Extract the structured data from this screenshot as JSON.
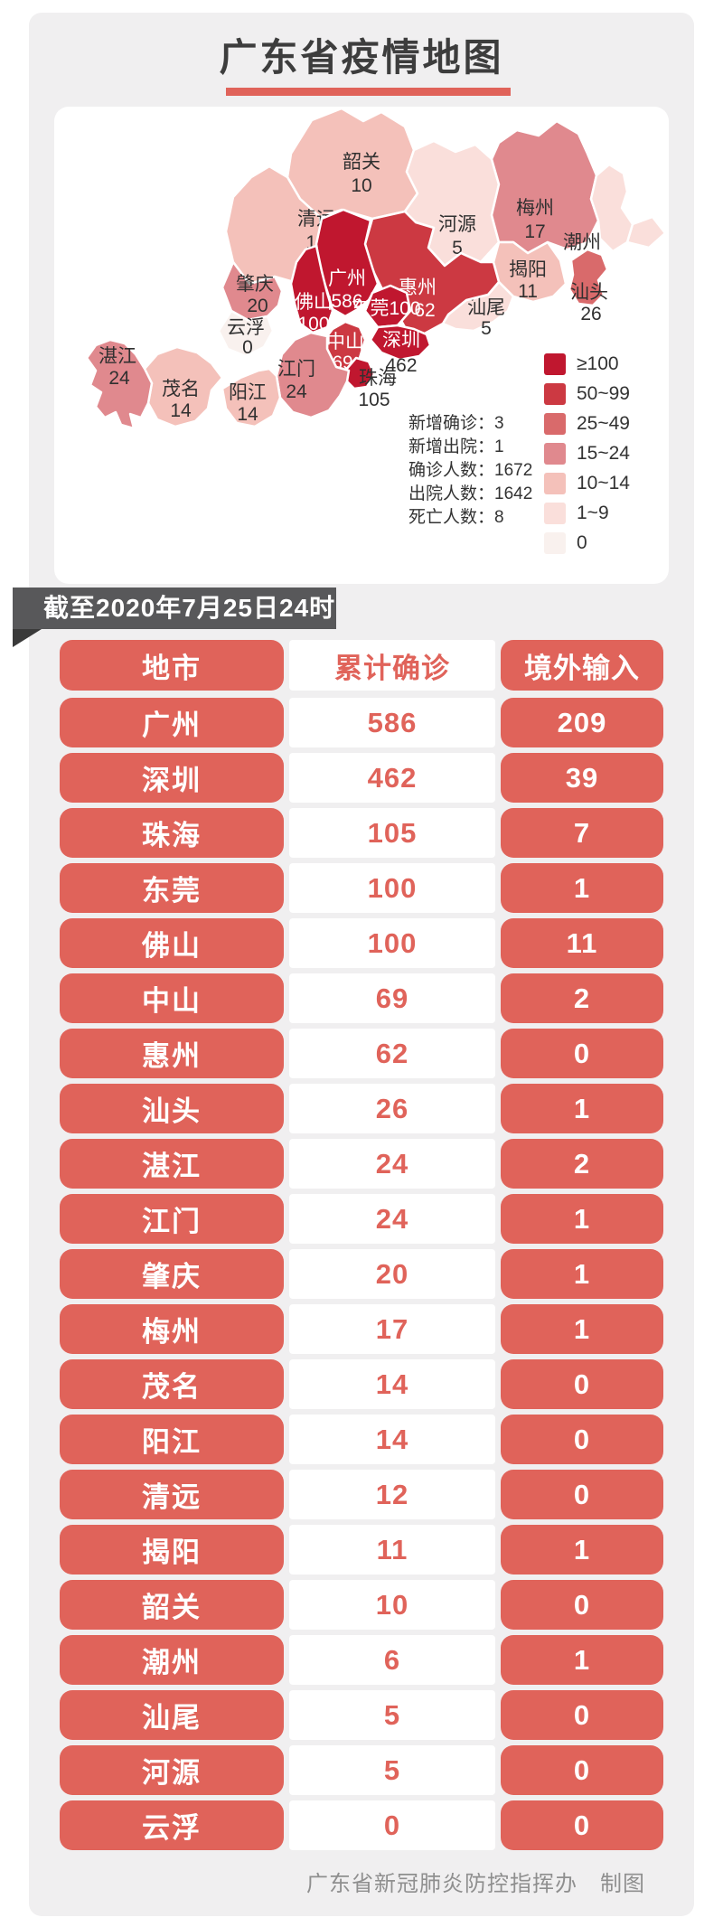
{
  "title": "广东省疫情地图",
  "date_badge": "截至2020年7月25日24时",
  "footer": "广东省新冠肺炎防控指挥办　制图",
  "colors": {
    "pill": "#e0635a",
    "pill_text": "#ffffff",
    "value_text": "#e0635a",
    "badge_bg": "#58585a",
    "underline": "#e0635a",
    "title_text": "#3d3d3d",
    "page_bg": "#f0eff0",
    "card_bg": "#ffffff",
    "footer_text": "#8f8f8f",
    "map_label_dark": "#303030",
    "map_label_light": "#ffffff"
  },
  "buckets": {
    "gte100": "#c0172f",
    "b50": "#cc3942",
    "b25": "#d96a6b",
    "b15": "#e0898e",
    "b10": "#f4c1ba",
    "b1": "#fadfdb",
    "b0": "#f9f1ee"
  },
  "map": {
    "legend": [
      {
        "label": "≥100",
        "color": "#c0172f"
      },
      {
        "label": "50~99",
        "color": "#cc3942"
      },
      {
        "label": "25~49",
        "color": "#d96a6b"
      },
      {
        "label": "15~24",
        "color": "#e0898e"
      },
      {
        "label": "10~14",
        "color": "#f4c1ba"
      },
      {
        "label": "1~9",
        "color": "#fadfdb"
      },
      {
        "label": "0",
        "color": "#f9f1ee"
      }
    ],
    "stats": [
      {
        "label": "新增确诊",
        "value": "3"
      },
      {
        "label": "新增出院",
        "value": "1"
      },
      {
        "label": "确诊人数",
        "value": "1672"
      },
      {
        "label": "出院人数",
        "value": "1642"
      },
      {
        "label": "死亡人数",
        "value": "8"
      }
    ],
    "cities": [
      {
        "id": "shaoguan",
        "name": "韶关",
        "value": "10",
        "bucket": "b10"
      },
      {
        "id": "qingyuan",
        "name": "清远",
        "value": "12",
        "bucket": "b10"
      },
      {
        "id": "zhaoqing",
        "name": "肇庆",
        "value": "20",
        "bucket": "b15"
      },
      {
        "id": "yunfu",
        "name": "云浮",
        "value": "0",
        "bucket": "b0"
      },
      {
        "id": "heyuan",
        "name": "河源",
        "value": "5",
        "bucket": "b1"
      },
      {
        "id": "meizhou",
        "name": "梅州",
        "value": "17",
        "bucket": "b15"
      },
      {
        "id": "chaozhou",
        "name": "潮州",
        "value": "6",
        "bucket": "b1"
      },
      {
        "id": "jieyang",
        "name": "揭阳",
        "value": "11",
        "bucket": "b10"
      },
      {
        "id": "shantou",
        "name": "汕头",
        "value": "26",
        "bucket": "b25"
      },
      {
        "id": "shanwei",
        "name": "汕尾",
        "value": "5",
        "bucket": "b1"
      },
      {
        "id": "huizhou",
        "name": "惠州",
        "value": "62",
        "bucket": "b50"
      },
      {
        "id": "guangzhou",
        "name": "广州",
        "value": "586",
        "bucket": "gte100"
      },
      {
        "id": "foshan",
        "name": "佛山",
        "value": "100",
        "bucket": "gte100"
      },
      {
        "id": "dongguan",
        "name": "东莞",
        "value": "100",
        "bucket": "gte100"
      },
      {
        "id": "shenzhen",
        "name": "深圳",
        "value": "462",
        "bucket": "gte100"
      },
      {
        "id": "zhongshan",
        "name": "中山",
        "value": "69",
        "bucket": "b50"
      },
      {
        "id": "zhuhai",
        "name": "珠海",
        "value": "105",
        "bucket": "gte100"
      },
      {
        "id": "jiangmen",
        "name": "江门",
        "value": "24",
        "bucket": "b15"
      },
      {
        "id": "yangjiang",
        "name": "阳江",
        "value": "14",
        "bucket": "b10"
      },
      {
        "id": "maoming",
        "name": "茂名",
        "value": "14",
        "bucket": "b10"
      },
      {
        "id": "zhanjiang",
        "name": "湛江",
        "value": "24",
        "bucket": "b15"
      }
    ]
  },
  "table": {
    "headers": [
      "地市",
      "累计确诊",
      "境外输入"
    ],
    "rows": [
      [
        "广州",
        "586",
        "209"
      ],
      [
        "深圳",
        "462",
        "39"
      ],
      [
        "珠海",
        "105",
        "7"
      ],
      [
        "东莞",
        "100",
        "1"
      ],
      [
        "佛山",
        "100",
        "11"
      ],
      [
        "中山",
        "69",
        "2"
      ],
      [
        "惠州",
        "62",
        "0"
      ],
      [
        "汕头",
        "26",
        "1"
      ],
      [
        "湛江",
        "24",
        "2"
      ],
      [
        "江门",
        "24",
        "1"
      ],
      [
        "肇庆",
        "20",
        "1"
      ],
      [
        "梅州",
        "17",
        "1"
      ],
      [
        "茂名",
        "14",
        "0"
      ],
      [
        "阳江",
        "14",
        "0"
      ],
      [
        "清远",
        "12",
        "0"
      ],
      [
        "揭阳",
        "11",
        "1"
      ],
      [
        "韶关",
        "10",
        "0"
      ],
      [
        "潮州",
        "6",
        "1"
      ],
      [
        "汕尾",
        "5",
        "0"
      ],
      [
        "河源",
        "5",
        "0"
      ],
      [
        "云浮",
        "0",
        "0"
      ]
    ]
  },
  "chart_data": {
    "type": "heatmap",
    "subtype": "choropleth-map-with-table",
    "title": "广东省疫情地图",
    "as_of": "截至2020年7月25日24时",
    "categories": [
      "广州",
      "深圳",
      "珠海",
      "东莞",
      "佛山",
      "中山",
      "惠州",
      "汕头",
      "湛江",
      "江门",
      "肇庆",
      "梅州",
      "茂名",
      "阳江",
      "清远",
      "揭阳",
      "韶关",
      "潮州",
      "汕尾",
      "河源",
      "云浮"
    ],
    "series": [
      {
        "name": "累计确诊",
        "values": [
          586,
          462,
          105,
          100,
          100,
          69,
          62,
          26,
          24,
          24,
          20,
          17,
          14,
          14,
          12,
          11,
          10,
          6,
          5,
          5,
          0
        ]
      },
      {
        "name": "境外输入",
        "values": [
          209,
          39,
          7,
          1,
          11,
          2,
          0,
          1,
          2,
          1,
          1,
          1,
          0,
          0,
          0,
          1,
          0,
          1,
          0,
          0,
          0
        ]
      }
    ],
    "summary": {
      "新增确诊": 3,
      "新增出院": 1,
      "确诊人数": 1672,
      "出院人数": 1642,
      "死亡人数": 8
    },
    "legend_buckets": [
      "≥100",
      "50~99",
      "25~49",
      "15~24",
      "10~14",
      "1~9",
      "0"
    ],
    "legend_position": "right-bottom-of-map"
  }
}
